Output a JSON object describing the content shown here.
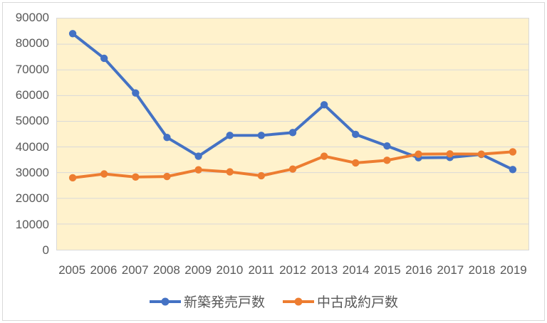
{
  "chart_data": {
    "type": "line",
    "title": "",
    "categories": [
      "2005",
      "2006",
      "2007",
      "2008",
      "2009",
      "2010",
      "2011",
      "2012",
      "2013",
      "2014",
      "2015",
      "2016",
      "2017",
      "2018",
      "2019"
    ],
    "series": [
      {
        "name": "新築発売戸数",
        "color": "#4472C4",
        "values": [
          84100,
          74500,
          61000,
          43700,
          36400,
          44500,
          44500,
          45600,
          56400,
          44900,
          40400,
          35800,
          35900,
          37100,
          31200
        ]
      },
      {
        "name": "中古成約戸数",
        "color": "#ED7D31",
        "values": [
          28000,
          29500,
          28300,
          28500,
          31100,
          30300,
          28800,
          31400,
          36400,
          33800,
          34800,
          37200,
          37300,
          37200,
          38100
        ]
      }
    ],
    "xlabel": "",
    "ylabel": "",
    "ylim": [
      0,
      90000
    ],
    "ytick_step": 10000,
    "y_tick_labels": [
      "0",
      "10000",
      "20000",
      "30000",
      "40000",
      "50000",
      "60000",
      "70000",
      "80000",
      "90000"
    ],
    "grid": true,
    "legend_position": "bottom",
    "marker": "circle",
    "colors": {
      "plot_bg": "#FFF2CC",
      "grid_line": "#D9D9D9",
      "axis_text": "#595959",
      "chart_border": "#D9D9D9",
      "page_bg": "#FFFFFF"
    }
  }
}
